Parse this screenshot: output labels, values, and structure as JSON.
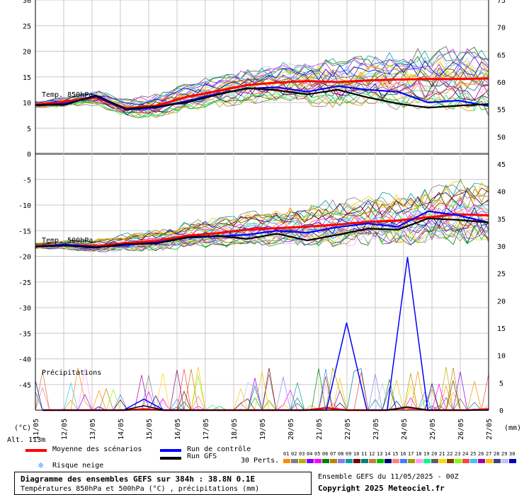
{
  "chart_data": {
    "type": "line",
    "title": "",
    "x": [
      "12/05",
      "13/05",
      "14/05",
      "15/05",
      "16/05",
      "17/05",
      "18/05",
      "19/05",
      "20/05",
      "21/05",
      "22/05",
      "23/05",
      "24/05",
      "25/05",
      "26/05",
      "27/05"
    ],
    "x_start_label": "11/05",
    "left_unit_label": "(°C)",
    "right_unit_label": "(mm)",
    "left_axis": {
      "ylim": [
        -50,
        30
      ],
      "ticks": [
        30,
        25,
        20,
        15,
        10,
        5,
        0,
        -5,
        -10,
        -15,
        -20,
        -25,
        -30,
        -35,
        -40,
        -45
      ]
    },
    "right_axis": {
      "ylim": [
        0,
        75
      ],
      "ticks": [
        75,
        70,
        65,
        60,
        55,
        50,
        45,
        40,
        35,
        30,
        25,
        20,
        15,
        10,
        5,
        0
      ]
    },
    "grid": true,
    "panel_labels": {
      "t850": "Temp. 850hPa",
      "t500": "Temp. 500hPa",
      "precip": "Précipitations"
    },
    "series": [
      {
        "name": "Moyenne des scénarios",
        "color": "#ff0000",
        "t850": [
          9.6,
          10.2,
          11.0,
          8.9,
          9.4,
          11.1,
          12.2,
          13.4,
          13.9,
          14.2,
          14.0,
          14.3,
          14.5,
          14.6,
          14.6,
          14.7
        ],
        "t500": [
          -18.0,
          -17.8,
          -18.0,
          -17.4,
          -17.0,
          -16.0,
          -15.5,
          -14.8,
          -14.5,
          -14.2,
          -13.8,
          -13.3,
          -13.0,
          -12.4,
          -11.8,
          -12.0
        ],
        "precip": [
          0,
          0,
          0,
          0,
          0,
          0.2,
          0,
          0,
          0,
          0,
          0,
          0,
          0,
          0,
          0.4,
          0,
          0,
          0,
          0.5,
          0,
          0,
          0,
          0.2
        ]
      },
      {
        "name": "Run de contrôle",
        "color": "#0000ff",
        "t850": [
          9.5,
          9.8,
          11.2,
          8.6,
          9.0,
          10.3,
          11.7,
          12.7,
          13.0,
          12.1,
          13.2,
          12.5,
          12.1,
          10.0,
          10.4,
          9.3
        ],
        "t500": [
          -18.1,
          -17.7,
          -18.2,
          -17.8,
          -17.3,
          -16.4,
          -16.1,
          -15.8,
          -15.0,
          -15.4,
          -14.3,
          -13.6,
          -14.2,
          -11.2,
          -12.0,
          -13.4
        ],
        "precip": [
          0,
          0,
          0,
          0,
          0,
          2,
          0,
          0,
          0,
          0,
          0,
          0,
          0,
          0,
          0,
          16,
          0,
          0,
          28,
          0,
          0,
          0,
          0
        ]
      },
      {
        "name": "Run GFS",
        "color": "#000000",
        "t850": [
          9.5,
          9.6,
          11.4,
          8.7,
          9.2,
          10.0,
          11.5,
          12.8,
          12.4,
          11.6,
          12.5,
          11.0,
          9.8,
          9.0,
          9.4,
          9.7
        ],
        "t500": [
          -18.1,
          -17.9,
          -18.3,
          -17.6,
          -17.5,
          -16.3,
          -16.0,
          -16.6,
          -15.6,
          -16.9,
          -15.8,
          -14.6,
          -14.8,
          -12.6,
          -12.9,
          -13.4
        ],
        "precip": [
          0,
          0,
          0,
          0,
          0,
          0.8,
          0,
          0,
          0,
          0,
          0,
          0,
          0,
          0,
          0,
          0,
          0,
          0,
          0.6,
          0,
          0,
          0,
          0
        ]
      }
    ]
  },
  "legend": {
    "mean": "Moyenne des scénarios",
    "control": "Run de contrôle",
    "gfs": "Run GFS",
    "snow": "Risque neige",
    "perts_label": "30 Perts.",
    "perts": [
      "01",
      "02",
      "03",
      "04",
      "05",
      "06",
      "07",
      "08",
      "09",
      "10",
      "11",
      "12",
      "13",
      "14",
      "15",
      "16",
      "17",
      "18",
      "19",
      "20",
      "21",
      "22",
      "23",
      "24",
      "25",
      "26",
      "27",
      "28",
      "29",
      "30"
    ],
    "pert_colors": [
      "#ff8c00",
      "#808080",
      "#b0b000",
      "#8000ff",
      "#ff00ff",
      "#008000",
      "#c08000",
      "#8080ff",
      "#00a0a0",
      "#800000",
      "#008080",
      "#c08040",
      "#00c000",
      "#000080",
      "#ff8080",
      "#4080ff",
      "#a0a000",
      "#ffa0ff",
      "#00ff80",
      "#606060",
      "#ffd700",
      "#804000",
      "#80ff00",
      "#ff4040",
      "#40c0ff",
      "#a000a0",
      "#ffc000",
      "#404080",
      "#c0c0ff",
      "#0000c0"
    ]
  },
  "altitude": "Alt. 113m",
  "footer": {
    "title": "Diagramme des ensembles GEFS sur 384h : 38.8N 0.1E",
    "subtitle": "Températures 850hPa et 500hPa (°C) , précipitations (mm)",
    "run_info": "Ensemble GEFS du 11/05/2025 - 00Z",
    "copyright": "Copyright 2025 Meteociel.fr"
  }
}
